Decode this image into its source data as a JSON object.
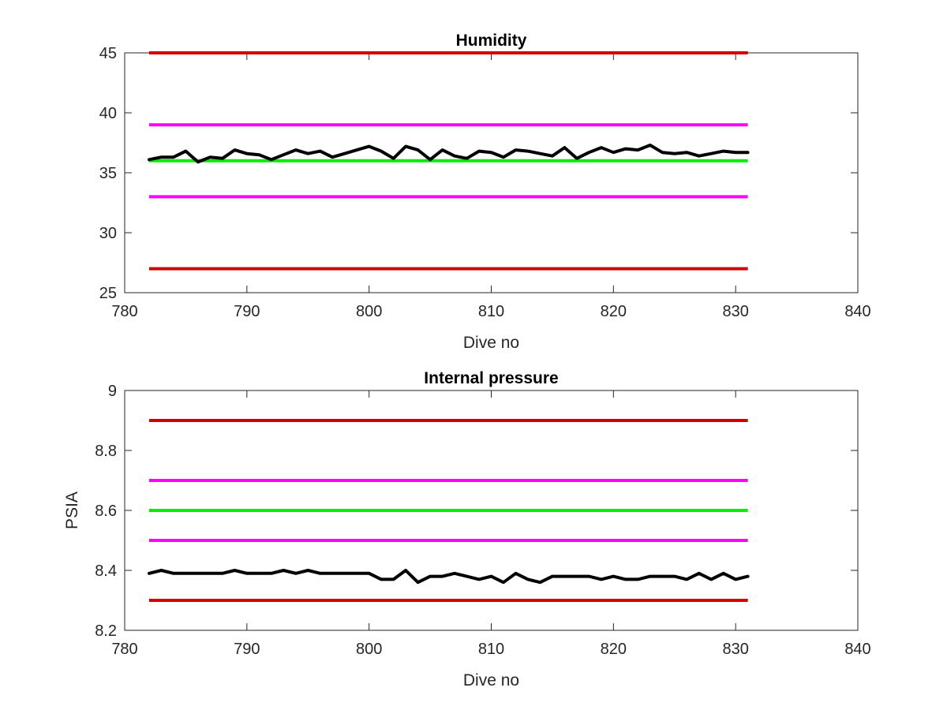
{
  "chart_data": [
    {
      "type": "line",
      "title": "Humidity",
      "xlabel": "Dive no",
      "ylabel": "",
      "xlim": [
        780,
        840
      ],
      "ylim": [
        25,
        45
      ],
      "xticks": [
        "780",
        "790",
        "800",
        "810",
        "820",
        "830",
        "840"
      ],
      "yticks": [
        "25",
        "30",
        "35",
        "40",
        "45"
      ],
      "grid": false,
      "reference_lines": [
        {
          "y": 45,
          "x": [
            782,
            831
          ],
          "color": "#d40000"
        },
        {
          "y": 39,
          "x": [
            782,
            831
          ],
          "color": "#ff00ff"
        },
        {
          "y": 36,
          "x": [
            782,
            831
          ],
          "color": "#00ee00"
        },
        {
          "y": 33,
          "x": [
            782,
            831
          ],
          "color": "#ff00ff"
        },
        {
          "y": 27,
          "x": [
            782,
            831
          ],
          "color": "#d40000"
        }
      ],
      "series": [
        {
          "color": "#000000",
          "x": [
            782,
            783,
            784,
            785,
            786,
            787,
            788,
            789,
            790,
            791,
            792,
            793,
            794,
            795,
            796,
            797,
            798,
            799,
            800,
            801,
            802,
            803,
            804,
            805,
            806,
            807,
            808,
            809,
            810,
            811,
            812,
            813,
            814,
            815,
            816,
            817,
            818,
            819,
            820,
            821,
            822,
            823,
            824,
            825,
            826,
            827,
            828,
            829,
            830,
            831
          ],
          "values": [
            36.1,
            36.3,
            36.3,
            36.8,
            35.9,
            36.3,
            36.2,
            36.9,
            36.6,
            36.5,
            36.1,
            36.5,
            36.9,
            36.6,
            36.8,
            36.3,
            36.6,
            36.9,
            37.2,
            36.8,
            36.2,
            37.2,
            36.9,
            36.1,
            36.9,
            36.4,
            36.2,
            36.8,
            36.7,
            36.3,
            36.9,
            36.8,
            36.6,
            36.4,
            37.1,
            36.2,
            36.7,
            37.1,
            36.7,
            37.0,
            36.9,
            37.3,
            36.7,
            36.6,
            36.7,
            36.4,
            36.6,
            36.8,
            36.7,
            36.7
          ]
        }
      ]
    },
    {
      "type": "line",
      "title": "Internal pressure",
      "xlabel": "Dive no",
      "ylabel": "PSIA",
      "xlim": [
        780,
        840
      ],
      "ylim": [
        8.2,
        9
      ],
      "xticks": [
        "780",
        "790",
        "800",
        "810",
        "820",
        "830",
        "840"
      ],
      "yticks": [
        "8.2",
        "8.4",
        "8.6",
        "8.8",
        "9"
      ],
      "grid": false,
      "reference_lines": [
        {
          "y": 8.9,
          "x": [
            782,
            831
          ],
          "color": "#d40000"
        },
        {
          "y": 8.7,
          "x": [
            782,
            831
          ],
          "color": "#ff00ff"
        },
        {
          "y": 8.6,
          "x": [
            782,
            831
          ],
          "color": "#00ee00"
        },
        {
          "y": 8.5,
          "x": [
            782,
            831
          ],
          "color": "#ff00ff"
        },
        {
          "y": 8.3,
          "x": [
            782,
            831
          ],
          "color": "#d40000"
        }
      ],
      "series": [
        {
          "color": "#000000",
          "x": [
            782,
            783,
            784,
            785,
            786,
            787,
            788,
            789,
            790,
            791,
            792,
            793,
            794,
            795,
            796,
            797,
            798,
            799,
            800,
            801,
            802,
            803,
            804,
            805,
            806,
            807,
            808,
            809,
            810,
            811,
            812,
            813,
            814,
            815,
            816,
            817,
            818,
            819,
            820,
            821,
            822,
            823,
            824,
            825,
            826,
            827,
            828,
            829,
            830,
            831
          ],
          "values": [
            8.39,
            8.4,
            8.39,
            8.39,
            8.39,
            8.39,
            8.39,
            8.4,
            8.39,
            8.39,
            8.39,
            8.4,
            8.39,
            8.4,
            8.39,
            8.39,
            8.39,
            8.39,
            8.39,
            8.37,
            8.37,
            8.4,
            8.36,
            8.38,
            8.38,
            8.39,
            8.38,
            8.37,
            8.38,
            8.36,
            8.39,
            8.37,
            8.36,
            8.38,
            8.38,
            8.38,
            8.38,
            8.37,
            8.38,
            8.37,
            8.37,
            8.38,
            8.38,
            8.38,
            8.37,
            8.39,
            8.37,
            8.39,
            8.37,
            8.38
          ]
        }
      ]
    }
  ]
}
